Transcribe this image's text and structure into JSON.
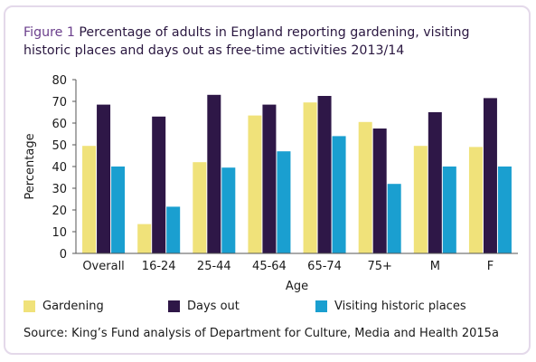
{
  "title": {
    "label": "Figure 1",
    "text": "Percentage of adults in England reporting gardening, visiting historic places and days out as free-time activities 2013/14"
  },
  "source": "Source: King’s Fund analysis of Department for Culture, Media and Health 2015a",
  "colors": {
    "gardening": "#f0e27a",
    "days_out": "#2e1747",
    "visiting": "#1a9fd0",
    "axis": "#555555",
    "title_label": "#6b3f8c",
    "frame": "#e4d9ea"
  },
  "chart_data": {
    "type": "bar",
    "categories": [
      "Overall",
      "16-24",
      "25-44",
      "45-64",
      "65-74",
      "75+",
      "M",
      "F"
    ],
    "series": [
      {
        "name": "Gardening",
        "values": [
          49.5,
          13.5,
          42,
          63.5,
          69.5,
          60.5,
          49.5,
          49
        ]
      },
      {
        "name": "Days out",
        "values": [
          68.5,
          63,
          73,
          68.5,
          72.5,
          57.5,
          65,
          71.5
        ]
      },
      {
        "name": "Visiting historic places",
        "values": [
          40,
          21.5,
          39.5,
          47,
          54,
          32,
          40,
          40
        ]
      }
    ],
    "xlabel": "Age",
    "ylabel": "Percentage",
    "ylim": [
      0,
      80
    ],
    "yticks": [
      "0",
      "10",
      "20",
      "30",
      "40",
      "50",
      "60",
      "70",
      "80"
    ],
    "grid": false,
    "legend_position": "bottom"
  }
}
